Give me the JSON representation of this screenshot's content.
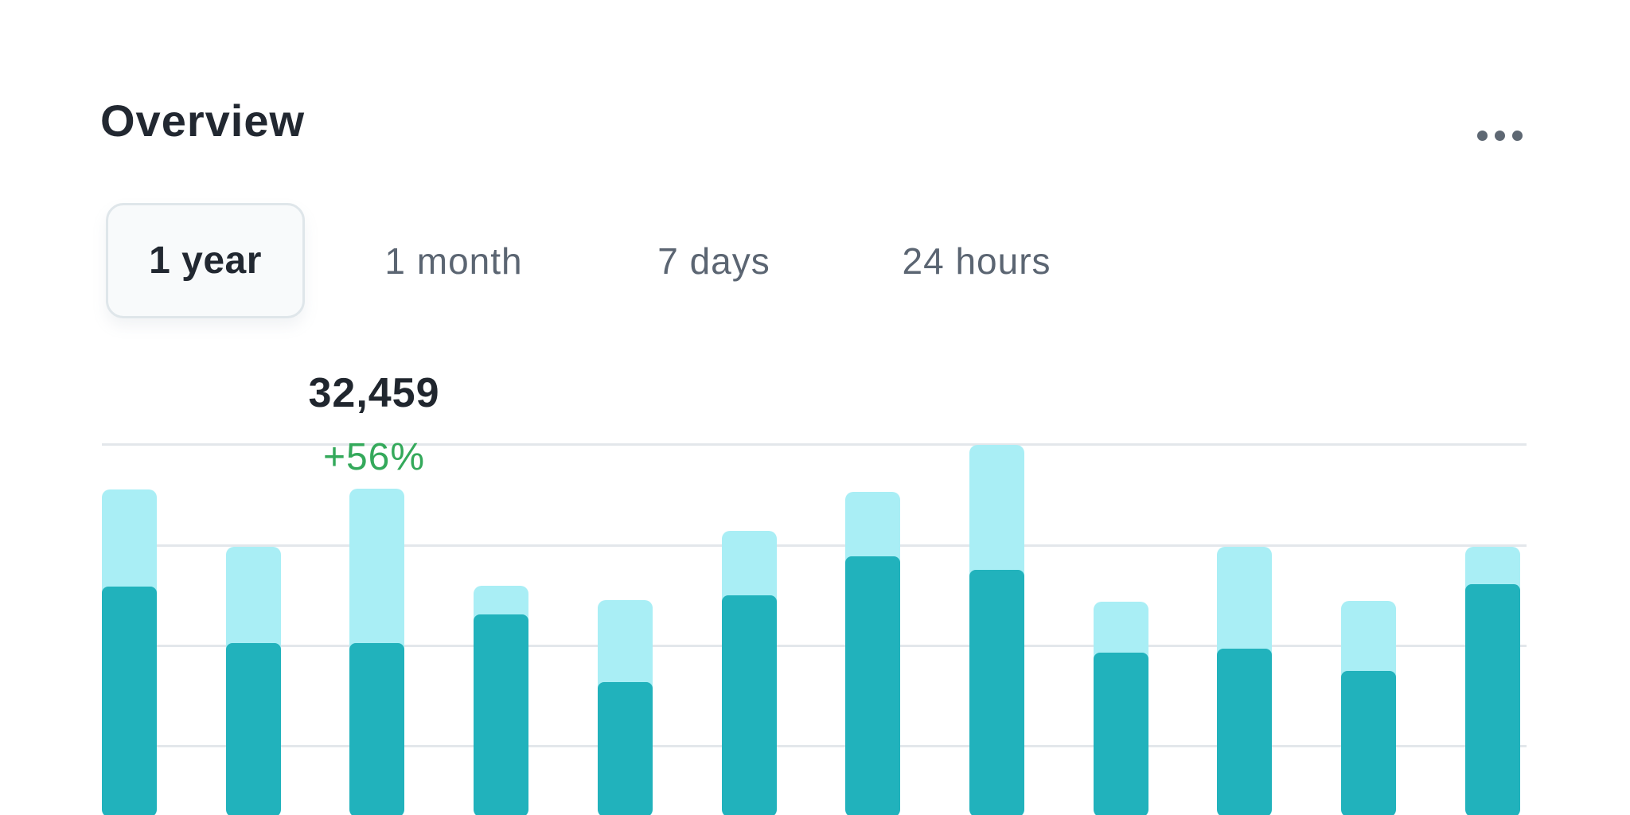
{
  "header": {
    "title": "Overview",
    "menu_icon": "ellipsis-horizontal"
  },
  "tabs": {
    "items": [
      {
        "id": "1-year",
        "label": "1 year",
        "selected": true
      },
      {
        "id": "1-month",
        "label": "1 month",
        "selected": false
      },
      {
        "id": "7-days",
        "label": "7 days",
        "selected": false
      },
      {
        "id": "24-hours",
        "label": "24 hours",
        "selected": false
      }
    ]
  },
  "chart_data": {
    "type": "bar",
    "stacked": true,
    "title": "",
    "xlabel": "",
    "ylabel": "",
    "axis_labels_visible": false,
    "legend_visible": false,
    "gridlines": {
      "orientation": "horizontal",
      "count": 4,
      "color": "#e3e7eb"
    },
    "series": [
      {
        "name": "primary-dark-teal",
        "color": "#21b2bc",
        "values": [
          23570,
          18440,
          18440,
          21040,
          14890,
          22770,
          26310,
          25090,
          17570,
          17930,
          15910,
          23780
        ]
      },
      {
        "name": "secondary-light-cyan",
        "color": "#a9eef5",
        "values": [
          8820,
          8750,
          14020,
          2600,
          7450,
          5860,
          5860,
          11350,
          4630,
          9250,
          6360,
          3400
        ]
      }
    ],
    "totals_note": "values estimated from bar heights; anchored to labeled total 32,459 on bar 3",
    "annotation": {
      "bar_index": 2,
      "value": "32,459",
      "change": "+56%",
      "value_color": "#20262e",
      "change_color": "#34a95b"
    }
  }
}
